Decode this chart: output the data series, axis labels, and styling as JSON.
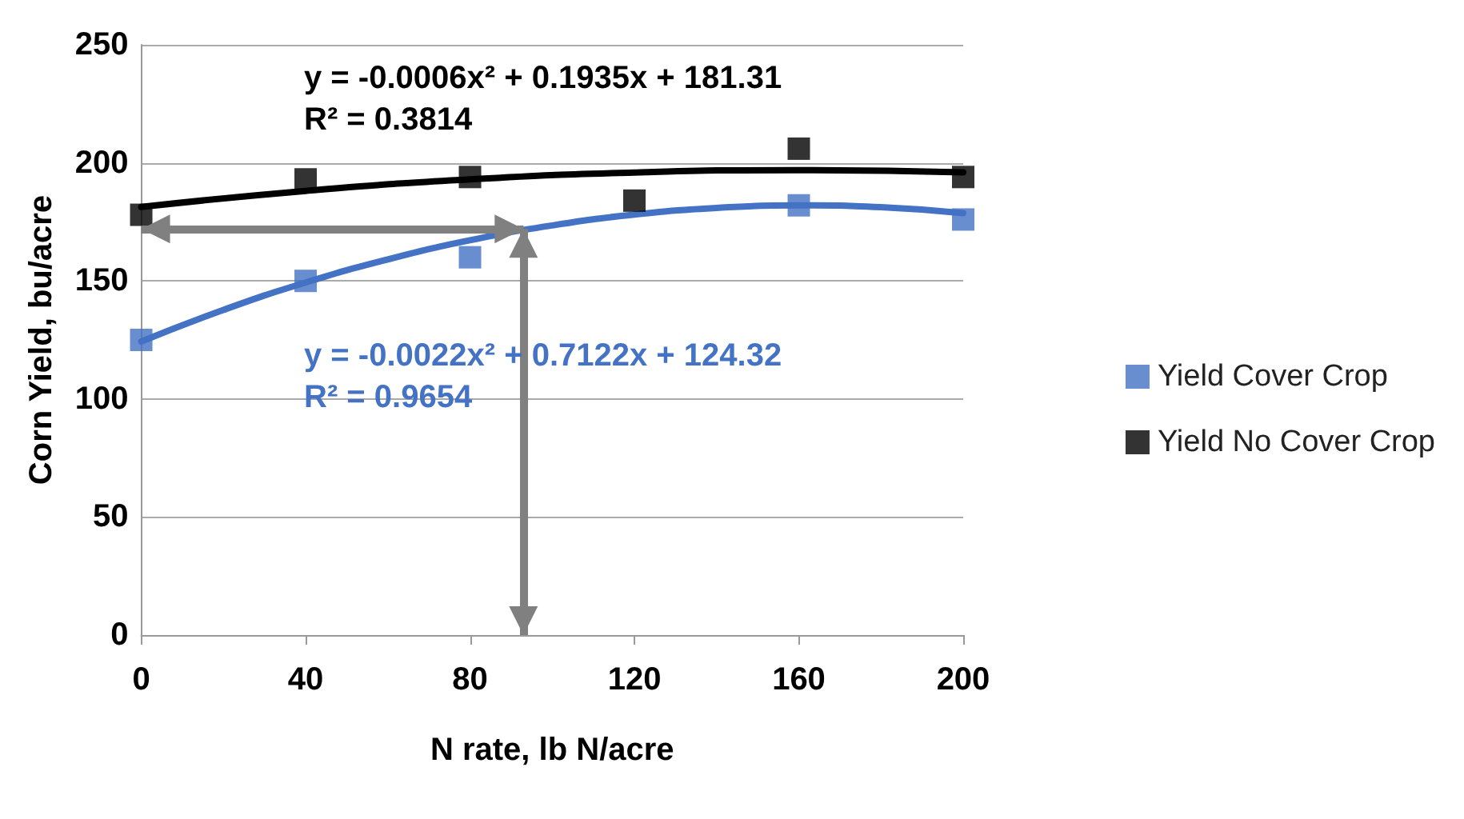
{
  "chart_data": {
    "type": "scatter",
    "xlabel": "N rate, lb N/acre",
    "ylabel": "Corn Yield, bu/acre",
    "x": [
      0,
      40,
      80,
      120,
      160,
      200
    ],
    "series": [
      {
        "name": "Yield Cover Crop",
        "color": "#4472c4",
        "marker": "square",
        "values": [
          125,
          150,
          160,
          null,
          182,
          176
        ]
      },
      {
        "name": "Yield No Cover Crop",
        "color": "#000000",
        "marker": "square",
        "values": [
          178,
          193,
          194,
          184,
          206,
          194
        ]
      },
      {
        "type": "line",
        "color": "#000000",
        "marker": "none",
        "x": [
          0,
          40,
          80,
          120,
          160,
          200
        ],
        "values": [
          181.3,
          188.1,
          193,
          195.9,
          196.9,
          196
        ]
      },
      {
        "type": "line",
        "color": "#4472c4",
        "marker": "none",
        "x": [
          0,
          20,
          40,
          60,
          80,
          100,
          120,
          140,
          160,
          180,
          200
        ],
        "values": [
          124.3,
          137.7,
          149.3,
          159.1,
          167.2,
          173.5,
          178.1,
          180.9,
          182,
          181.2,
          178.7
        ]
      }
    ],
    "xlim": [
      0,
      200
    ],
    "xticks": [
      0,
      40,
      80,
      120,
      160,
      200
    ],
    "ylim": [
      0,
      250
    ],
    "yticks": [
      0,
      50,
      100,
      150,
      200,
      250
    ],
    "grid": "y",
    "legend": "right",
    "line_style": "solid",
    "ref_lines": [
      {
        "axis": "x",
        "value": 93,
        "color": "#808080"
      },
      {
        "axis": "y",
        "value": 172,
        "color": "#808080"
      }
    ],
    "annotations": [
      "y = -0.0006x² + 0.1935x + 181.31",
      "R² = 0.3814",
      "y = -0.0022x² + 0.7122x + 124.32",
      "R² = 0.9654"
    ]
  }
}
